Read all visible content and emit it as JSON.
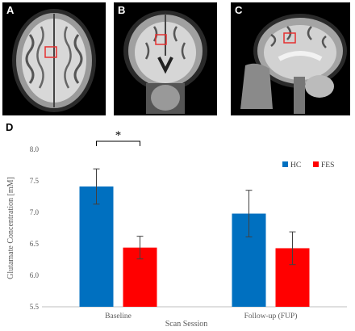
{
  "panels": {
    "a": {
      "letter": "A"
    },
    "b": {
      "letter": "B"
    },
    "c": {
      "letter": "C"
    },
    "d": {
      "letter": "D"
    }
  },
  "significance_marker": "*",
  "colors": {
    "hc": "#0070c0",
    "fes": "#ff0000",
    "roi": "#e53030"
  },
  "chart_data": {
    "type": "bar",
    "categories": [
      "Baseline",
      "Follow-up (FUP)"
    ],
    "series": [
      {
        "name": "HC",
        "values": [
          7.41,
          6.98
        ],
        "errors": [
          0.28,
          0.37
        ],
        "color": "#0070c0"
      },
      {
        "name": "FES",
        "values": [
          6.44,
          6.43
        ],
        "errors": [
          0.18,
          0.26
        ],
        "color": "#ff0000"
      }
    ],
    "xlabel": "Scan Session",
    "ylabel": "Glutamate Concentration [mM]",
    "ylim": [
      5.5,
      8.0
    ],
    "yticks": [
      "5.5",
      "6.0",
      "6.5",
      "7.0",
      "7.5",
      "8.0"
    ],
    "legend_position": "top-right",
    "grid": false
  }
}
